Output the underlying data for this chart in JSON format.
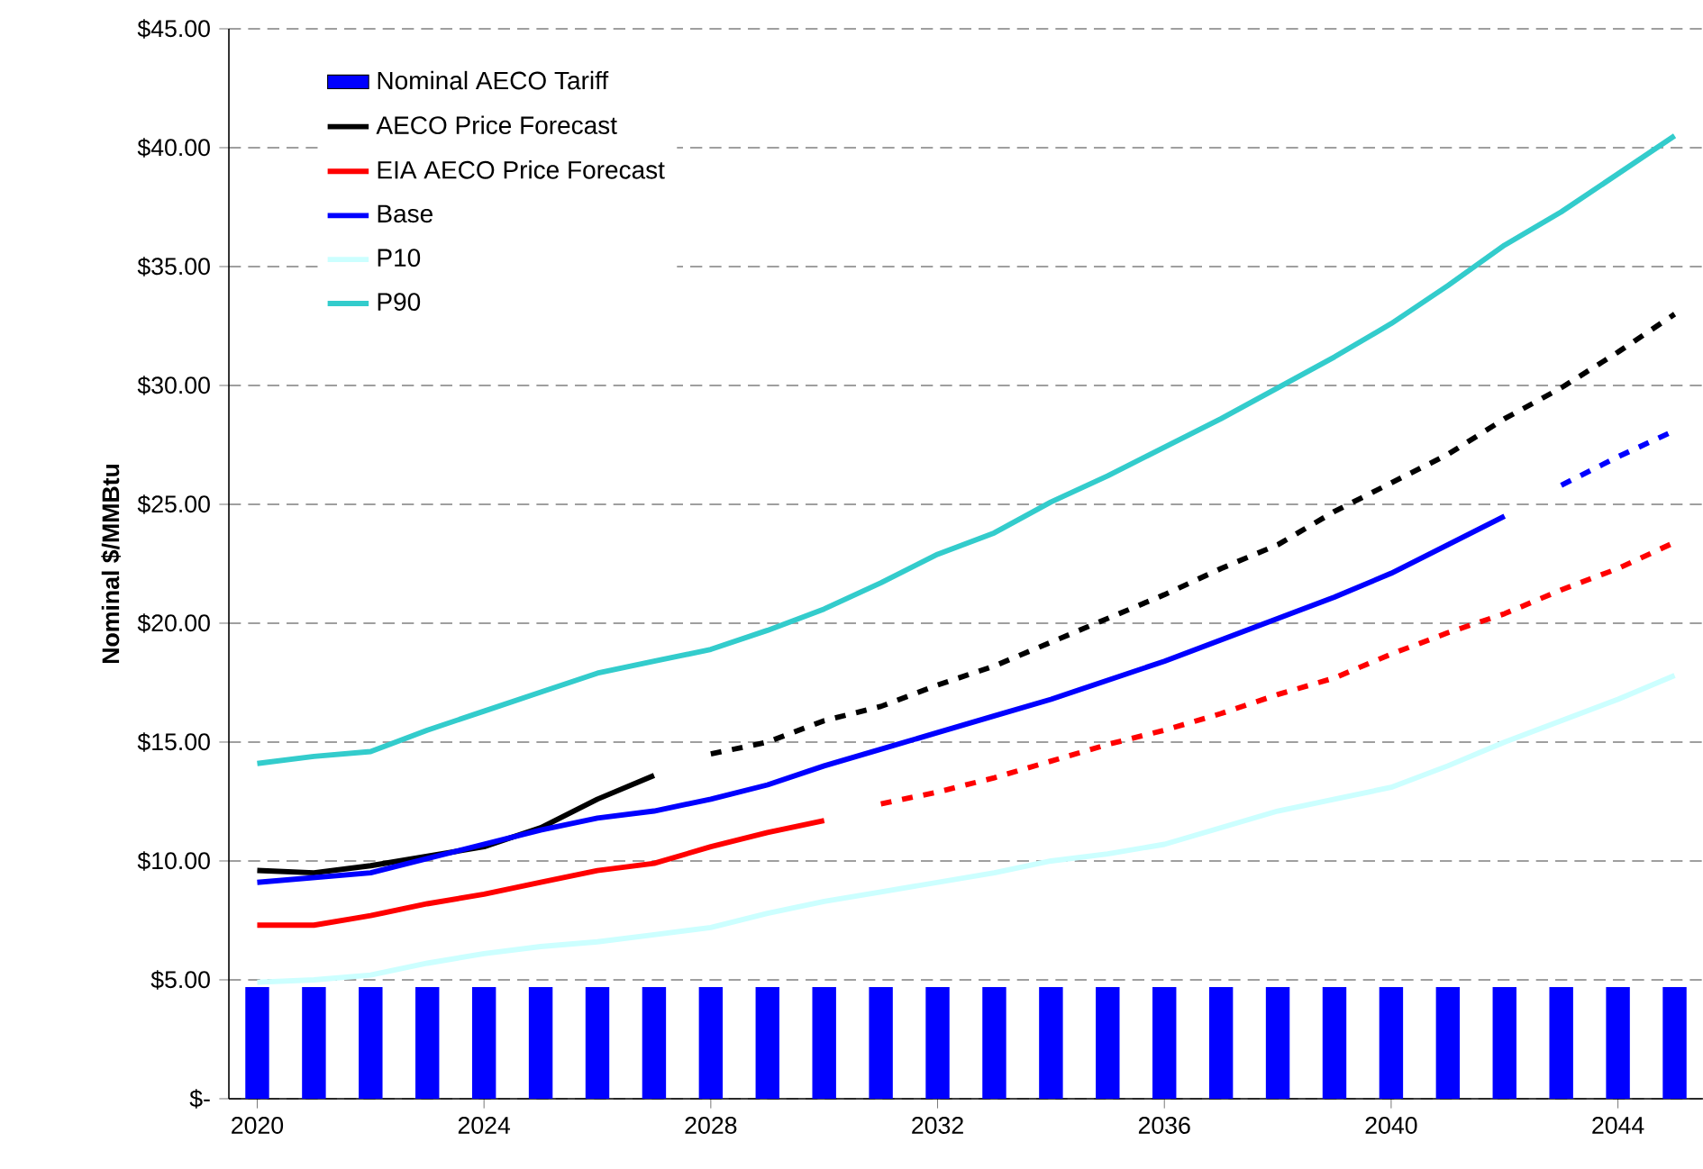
{
  "chart_data": {
    "type": "line",
    "ylabel": "Nominal $/MMBtu",
    "xlim": [
      2019.5,
      2045.5
    ],
    "xticks": [
      2020,
      2024,
      2028,
      2032,
      2036,
      2040,
      2044
    ],
    "ylim": [
      0,
      45
    ],
    "yticks": [
      {
        "value": 0,
        "label": "$-"
      },
      {
        "value": 5,
        "label": "$5.00"
      },
      {
        "value": 10,
        "label": "$10.00"
      },
      {
        "value": 15,
        "label": "$15.00"
      },
      {
        "value": 20,
        "label": "$20.00"
      },
      {
        "value": 25,
        "label": "$25.00"
      },
      {
        "value": 30,
        "label": "$30.00"
      },
      {
        "value": 35,
        "label": "$35.00"
      },
      {
        "value": 40,
        "label": "$40.00"
      },
      {
        "value": 45,
        "label": "$45.00"
      }
    ],
    "grid": "y",
    "legend": "top left",
    "series": [
      {
        "name": "Nominal AECO Tariff",
        "type": "bar",
        "color": "#0000ff",
        "x": [
          2020,
          2021,
          2022,
          2023,
          2024,
          2025,
          2026,
          2027,
          2028,
          2029,
          2030,
          2031,
          2032,
          2033,
          2034,
          2035,
          2036,
          2037,
          2038,
          2039,
          2040,
          2041,
          2042,
          2043,
          2044,
          2045
        ],
        "values": [
          4.7,
          4.7,
          4.7,
          4.7,
          4.7,
          4.7,
          4.7,
          4.7,
          4.7,
          4.7,
          4.7,
          4.7,
          4.7,
          4.7,
          4.7,
          4.7,
          4.7,
          4.7,
          4.7,
          4.7,
          4.7,
          4.7,
          4.7,
          4.7,
          4.7,
          4.7
        ]
      },
      {
        "name": "AECO Price Forecast",
        "color": "#000000",
        "line_style": "solid",
        "x": [
          2020,
          2021,
          2022,
          2023,
          2024,
          2025,
          2026,
          2027
        ],
        "values": [
          9.6,
          9.5,
          9.8,
          10.2,
          10.6,
          11.4,
          12.6,
          13.6
        ]
      },
      {
        "name": "EIA AECO Price Forecast",
        "color": "#ff0000",
        "line_style": "solid",
        "x": [
          2020,
          2021,
          2022,
          2023,
          2024,
          2025,
          2026,
          2027,
          2028,
          2029,
          2030
        ],
        "values": [
          7.3,
          7.3,
          7.7,
          8.2,
          8.6,
          9.1,
          9.6,
          9.9,
          10.6,
          11.2,
          11.7
        ]
      },
      {
        "name": "Base",
        "color": "#0000ff",
        "line_style": "solid",
        "x": [
          2020,
          2021,
          2022,
          2023,
          2024,
          2025,
          2026,
          2027,
          2028,
          2029,
          2030,
          2031,
          2032,
          2033,
          2034,
          2035,
          2036,
          2037,
          2038,
          2039,
          2040,
          2041,
          2042
        ],
        "values": [
          9.1,
          9.3,
          9.5,
          10.1,
          10.7,
          11.3,
          11.8,
          12.1,
          12.6,
          13.2,
          14.0,
          14.7,
          15.4,
          16.1,
          16.8,
          17.6,
          18.4,
          19.3,
          20.2,
          21.1,
          22.1,
          23.3,
          24.5
        ]
      },
      {
        "name": "P10",
        "color": "#ccffff",
        "line_style": "solid",
        "x": [
          2020,
          2021,
          2022,
          2023,
          2024,
          2025,
          2026,
          2027,
          2028,
          2029,
          2030,
          2031,
          2032,
          2033,
          2034,
          2035,
          2036,
          2037,
          2038,
          2039,
          2040,
          2041,
          2042,
          2043,
          2044,
          2045
        ],
        "values": [
          4.9,
          5.0,
          5.2,
          5.7,
          6.1,
          6.4,
          6.6,
          6.9,
          7.2,
          7.8,
          8.3,
          8.7,
          9.1,
          9.5,
          10.0,
          10.3,
          10.7,
          11.4,
          12.1,
          12.6,
          13.1,
          14.0,
          15.0,
          15.9,
          16.8,
          17.8
        ]
      },
      {
        "name": "P90",
        "color": "#33cccc",
        "line_style": "solid",
        "x": [
          2020,
          2021,
          2022,
          2023,
          2024,
          2025,
          2026,
          2027,
          2028,
          2029,
          2030,
          2031,
          2032,
          2033,
          2034,
          2035,
          2036,
          2037,
          2038,
          2039,
          2040,
          2041,
          2042,
          2043,
          2044,
          2045
        ],
        "values": [
          14.1,
          14.4,
          14.6,
          15.5,
          16.3,
          17.1,
          17.9,
          18.4,
          18.9,
          19.7,
          20.6,
          21.7,
          22.9,
          23.8,
          25.1,
          26.2,
          27.4,
          28.6,
          29.9,
          31.2,
          32.6,
          34.2,
          35.9,
          37.3,
          38.9,
          40.5
        ]
      },
      {
        "color": "#000000",
        "line_style": "dashed",
        "x": [
          2028,
          2029,
          2030,
          2031,
          2032,
          2033,
          2034,
          2035,
          2036,
          2037,
          2038,
          2039,
          2040,
          2041,
          2042,
          2043,
          2044,
          2045
        ],
        "values": [
          14.5,
          15.0,
          15.9,
          16.5,
          17.4,
          18.2,
          19.2,
          20.2,
          21.2,
          22.3,
          23.3,
          24.7,
          25.9,
          27.1,
          28.6,
          29.9,
          31.4,
          33.0
        ]
      },
      {
        "color": "#ff0000",
        "line_style": "dashed",
        "x": [
          2031,
          2032,
          2033,
          2034,
          2035,
          2036,
          2037,
          2038,
          2039,
          2040,
          2041,
          2042,
          2043,
          2044,
          2045
        ],
        "values": [
          12.4,
          12.9,
          13.5,
          14.2,
          14.9,
          15.5,
          16.2,
          17.0,
          17.7,
          18.7,
          19.6,
          20.4,
          21.4,
          22.3,
          23.4
        ]
      },
      {
        "color": "#0000ff",
        "line_style": "dashed",
        "x": [
          2043,
          2044,
          2045
        ],
        "values": [
          25.8,
          27.0,
          28.1
        ]
      }
    ]
  }
}
